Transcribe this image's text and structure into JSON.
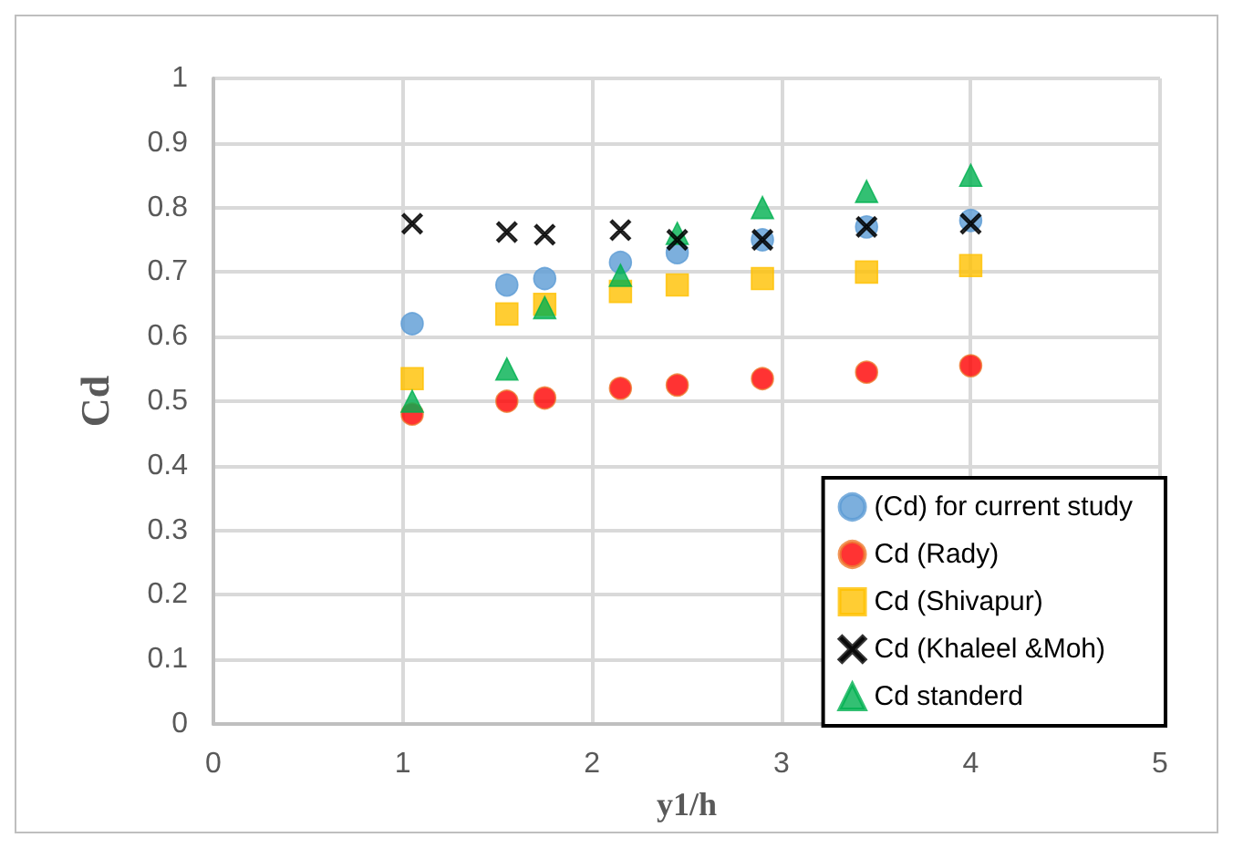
{
  "chart_data": {
    "type": "scatter",
    "xlabel": "y1/h",
    "ylabel": "Cd",
    "x": [
      1.05,
      1.55,
      1.75,
      2.15,
      2.45,
      2.9,
      3.45,
      4.0
    ],
    "series": [
      {
        "name": "(Cd) for current study",
        "color": "#5b9bd5",
        "marker": "circle",
        "values": [
          0.62,
          0.68,
          0.69,
          0.715,
          0.73,
          0.75,
          0.77,
          0.78
        ]
      },
      {
        "name": "Cd (Rady)",
        "color": "#ff0000",
        "marker": "circle",
        "values": [
          0.48,
          0.5,
          0.505,
          0.52,
          0.525,
          0.535,
          0.545,
          0.555
        ]
      },
      {
        "name": "Cd (Shivapur)",
        "color": "#ffc000",
        "marker": "square",
        "values": [
          0.535,
          0.635,
          0.65,
          0.67,
          0.68,
          0.69,
          0.7,
          0.71
        ]
      },
      {
        "name": "Cd (Khaleel &Moh)",
        "color": "#000000",
        "marker": "cross",
        "values": [
          0.775,
          0.762,
          0.758,
          0.765,
          0.75,
          0.75,
          0.77,
          0.775
        ]
      },
      {
        "name": "Cd standerd",
        "color": "#00b050",
        "marker": "triangle",
        "values": [
          0.5,
          0.55,
          0.645,
          0.695,
          0.76,
          0.8,
          0.825,
          0.85
        ]
      }
    ],
    "xlim": [
      0,
      5
    ],
    "xticks": [
      0,
      1,
      2,
      3,
      4,
      5
    ],
    "ylim": [
      0,
      1
    ],
    "yticks": [
      0,
      0.1,
      0.2,
      0.3,
      0.4,
      0.5,
      0.6,
      0.7,
      0.8,
      0.9,
      1
    ],
    "grid": true,
    "legend": "bottom right"
  }
}
